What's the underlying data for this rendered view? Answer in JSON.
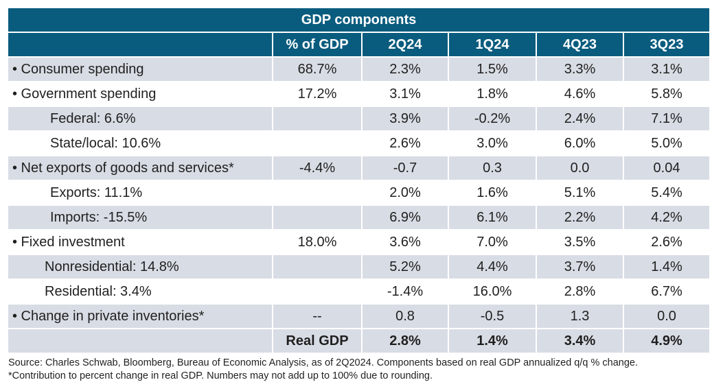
{
  "table": {
    "title": "GDP components",
    "headers": [
      "",
      "% of GDP",
      "2Q24",
      "1Q24",
      "4Q23",
      "3Q23"
    ],
    "rows": [
      {
        "label": "• Consumer spending",
        "pct": "68.7%",
        "q1": "2.3%",
        "q2": "1.5%",
        "q3": "3.3%",
        "q4": "3.1%"
      },
      {
        "label": "• Government spending",
        "pct": "17.2%",
        "q1": "3.1%",
        "q2": "1.8%",
        "q3": "4.6%",
        "q4": "5.8%"
      },
      {
        "label": "Federal: 6.6%",
        "pct": "",
        "q1": "3.9%",
        "q2": "-0.2%",
        "q3": "2.4%",
        "q4": "7.1%"
      },
      {
        "label": "State/local: 10.6%",
        "pct": "",
        "q1": "2.6%",
        "q2": "3.0%",
        "q3": "6.0%",
        "q4": "5.0%"
      },
      {
        "label": "• Net exports of goods and services*",
        "pct": "-4.4%",
        "q1": "-0.7",
        "q2": "0.3",
        "q3": "0.0",
        "q4": "0.04"
      },
      {
        "label": "Exports: 11.1%",
        "pct": "",
        "q1": "2.0%",
        "q2": "1.6%",
        "q3": "5.1%",
        "q4": "5.4%"
      },
      {
        "label": "Imports: -15.5%",
        "pct": "",
        "q1": "6.9%",
        "q2": "6.1%",
        "q3": "2.2%",
        "q4": "4.2%"
      },
      {
        "label": "• Fixed investment",
        "pct": "18.0%",
        "q1": "3.6%",
        "q2": "7.0%",
        "q3": "3.5%",
        "q4": "2.6%"
      },
      {
        "label": "Nonresidential: 14.8%",
        "pct": "",
        "q1": "5.2%",
        "q2": "4.4%",
        "q3": "3.7%",
        "q4": "1.4%"
      },
      {
        "label": "Residential: 3.4%",
        "pct": "",
        "q1": "-1.4%",
        "q2": "16.0%",
        "q3": "2.8%",
        "q4": "6.7%"
      },
      {
        "label": "• Change in private inventories*",
        "pct": "--",
        "q1": "0.8",
        "q2": "-0.5",
        "q3": "1.3",
        "q4": "0.0"
      }
    ],
    "total": {
      "label": "Real GDP",
      "q1": "2.8%",
      "q2": "1.4%",
      "q3": "3.4%",
      "q4": "4.9%"
    }
  },
  "notes": {
    "source": "Source: Charles Schwab, Bloomberg, Bureau of Economic Analysis, as of 2Q2024. Components based on real GDP annualized q/q % change.",
    "footnote": "*Contribution to percent change in real GDP. Numbers may not add up to 100% due to rounding."
  },
  "colors": {
    "header_bg": "#0a5c7e",
    "shade_bg": "#d8dce4"
  }
}
